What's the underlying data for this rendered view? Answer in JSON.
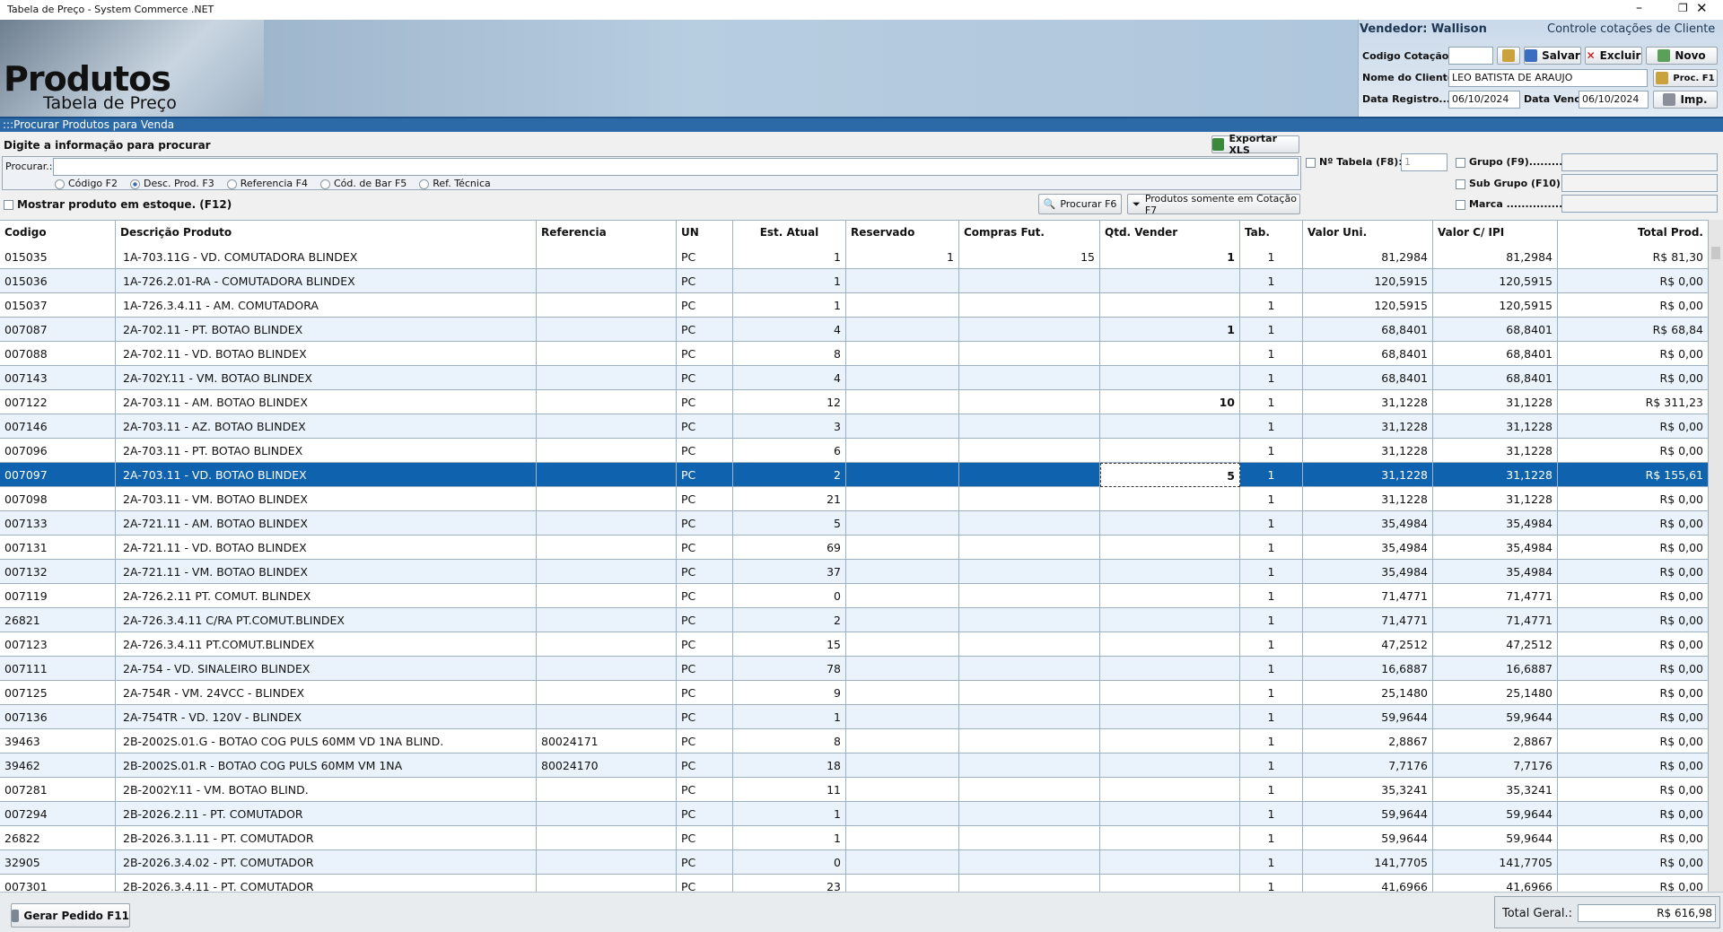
{
  "window": {
    "title": "Tabela de Preço - System Commerce .NET"
  },
  "header": {
    "title": "Produtos",
    "subtitle": "Tabela de Preço",
    "vendedor": "Vendedor: Wallison",
    "panel_title": "Controle cotações de Cliente",
    "codigo_label": "Codigo Cotação.:",
    "salvar": "Salvar",
    "excluir": "Excluir",
    "novo": "Novo",
    "cliente_label": "Nome do Cliente:",
    "cliente": "LEO BATISTA DE ARAUJO",
    "proc": "Proc. F1",
    "registro_label": "Data Registro....:",
    "registro": "06/10/2024",
    "venc_label": "Data Venc.:",
    "venc": "06/10/2024",
    "imp": "Imp."
  },
  "search": {
    "section": ":::Procurar Produtos para Venda",
    "hint": "Digite a informação para procurar",
    "export": "Exportar XLS",
    "label": "Procurar.:",
    "options": [
      "Código F2",
      "Desc. Prod. F3",
      "Referencia F4",
      "Cód. de Bar F5",
      "Ref. Técnica"
    ],
    "stock": "Mostrar produto em estoque. (F12)",
    "search_button": "Procurar F6",
    "quote_button": "Produtos somente em Cotação F7",
    "tabela_label": "Nº Tabela (F8):",
    "tabela": "1",
    "grupo": "Grupo (F9)..........:",
    "subgrupo": "Sub Grupo (F10):",
    "marca": "Marca ................:"
  },
  "table": {
    "columns": [
      "Codigo",
      "Descrição Produto",
      "Referencia",
      "UN",
      "Est. Atual",
      "Reservado",
      "Compras Fut.",
      "Qtd. Vender",
      "Tab.",
      "Valor Uni.",
      "Valor C/ IPI",
      "Total Prod."
    ],
    "rows": [
      [
        "015035",
        "1A-703.11G   - VD. COMUTADORA BLINDEX",
        "",
        "PC",
        "1",
        "1",
        "15",
        "1",
        "1",
        "81,2984",
        "81,2984",
        "R$ 81,30"
      ],
      [
        "015036",
        "1A-726.2.01-RA  -  COMUTADORA BLINDEX",
        "",
        "PC",
        "1",
        "",
        "",
        "",
        "1",
        "120,5915",
        "120,5915",
        "R$ 0,00"
      ],
      [
        "015037",
        "1A-726.3.4.11 - AM. COMUTADORA",
        "",
        "PC",
        "1",
        "",
        "",
        "",
        "1",
        "120,5915",
        "120,5915",
        "R$ 0,00"
      ],
      [
        "007087",
        "2A-702.11 -  PT. BOTAO BLINDEX",
        "",
        "PC",
        "4",
        "",
        "",
        "1",
        "1",
        "68,8401",
        "68,8401",
        "R$ 68,84"
      ],
      [
        "007088",
        "2A-702.11 -  VD. BOTAO BLINDEX",
        "",
        "PC",
        "8",
        "",
        "",
        "",
        "1",
        "68,8401",
        "68,8401",
        "R$ 0,00"
      ],
      [
        "007143",
        "2A-702Y.11 - VM. BOTAO BLINDEX",
        "",
        "PC",
        "4",
        "",
        "",
        "",
        "1",
        "68,8401",
        "68,8401",
        "R$ 0,00"
      ],
      [
        "007122",
        "2A-703.11 -  AM. BOTAO BLINDEX",
        "",
        "PC",
        "12",
        "",
        "",
        "10",
        "1",
        "31,1228",
        "31,1228",
        "R$ 311,23"
      ],
      [
        "007146",
        "2A-703.11 -  AZ. BOTAO BLINDEX",
        "",
        "PC",
        "3",
        "",
        "",
        "",
        "1",
        "31,1228",
        "31,1228",
        "R$ 0,00"
      ],
      [
        "007096",
        "2A-703.11 -  PT. BOTAO BLINDEX",
        "",
        "PC",
        "6",
        "",
        "",
        "",
        "1",
        "31,1228",
        "31,1228",
        "R$ 0,00"
      ],
      [
        "007097",
        "2A-703.11 -  VD. BOTAO BLINDEX",
        "",
        "PC",
        "2",
        "",
        "",
        "5",
        "1",
        "31,1228",
        "31,1228",
        "R$ 155,61"
      ],
      [
        "007098",
        "2A-703.11 -  VM. BOTAO BLINDEX",
        "",
        "PC",
        "21",
        "",
        "",
        "",
        "1",
        "31,1228",
        "31,1228",
        "R$ 0,00"
      ],
      [
        "007133",
        "2A-721.11 - AM. BOTAO BLINDEX",
        "",
        "PC",
        "5",
        "",
        "",
        "",
        "1",
        "35,4984",
        "35,4984",
        "R$ 0,00"
      ],
      [
        "007131",
        "2A-721.11 - VD. BOTAO BLINDEX",
        "",
        "PC",
        "69",
        "",
        "",
        "",
        "1",
        "35,4984",
        "35,4984",
        "R$ 0,00"
      ],
      [
        "007132",
        "2A-721.11 - VM. BOTAO BLINDEX",
        "",
        "PC",
        "37",
        "",
        "",
        "",
        "1",
        "35,4984",
        "35,4984",
        "R$ 0,00"
      ],
      [
        "007119",
        "2A-726.2.11 PT. COMUT. BLINDEX",
        "",
        "PC",
        "0",
        "",
        "",
        "",
        "1",
        "71,4771",
        "71,4771",
        "R$ 0,00"
      ],
      [
        "26821",
        "2A-726.3.4.11 C/RA PT.COMUT.BLINDEX",
        "",
        "PC",
        "2",
        "",
        "",
        "",
        "1",
        "71,4771",
        "71,4771",
        "R$ 0,00"
      ],
      [
        "007123",
        "2A-726.3.4.11 PT.COMUT.BLINDEX",
        "",
        "PC",
        "15",
        "",
        "",
        "",
        "1",
        "47,2512",
        "47,2512",
        "R$ 0,00"
      ],
      [
        "007111",
        "2A-754 - VD. SINALEIRO BLINDEX",
        "",
        "PC",
        "78",
        "",
        "",
        "",
        "1",
        "16,6887",
        "16,6887",
        "R$ 0,00"
      ],
      [
        "007125",
        "2A-754R - VM. 24VCC - BLINDEX",
        "",
        "PC",
        "9",
        "",
        "",
        "",
        "1",
        "25,1480",
        "25,1480",
        "R$ 0,00"
      ],
      [
        "007136",
        "2A-754TR - VD. 120V - BLINDEX",
        "",
        "PC",
        "1",
        "",
        "",
        "",
        "1",
        "59,9644",
        "59,9644",
        "R$ 0,00"
      ],
      [
        "39463",
        "2B-2002S.01.G  -  BOTAO COG PULS 60MM VD 1NA BLIND.",
        "80024171",
        "PC",
        "8",
        "",
        "",
        "",
        "1",
        "2,8867",
        "2,8867",
        "R$ 0,00"
      ],
      [
        "39462",
        "2B-2002S.01.R -  BOTAO COG PULS 60MM VM 1NA",
        "80024170",
        "PC",
        "18",
        "",
        "",
        "",
        "1",
        "7,7176",
        "7,7176",
        "R$ 0,00"
      ],
      [
        "007281",
        "2B-2002Y.11 - VM. BOTAO BLIND.",
        "",
        "PC",
        "11",
        "",
        "",
        "",
        "1",
        "35,3241",
        "35,3241",
        "R$ 0,00"
      ],
      [
        "007294",
        "2B-2026.2.11 - PT. COMUTADOR",
        "",
        "PC",
        "1",
        "",
        "",
        "",
        "1",
        "59,9644",
        "59,9644",
        "R$ 0,00"
      ],
      [
        "26822",
        "2B-2026.3.1.11 - PT. COMUTADOR",
        "",
        "PC",
        "1",
        "",
        "",
        "",
        "1",
        "59,9644",
        "59,9644",
        "R$ 0,00"
      ],
      [
        "32905",
        "2B-2026.3.4.02 - PT. COMUTADOR",
        "",
        "PC",
        "0",
        "",
        "",
        "",
        "1",
        "141,7705",
        "141,7705",
        "R$ 0,00"
      ],
      [
        "007301",
        "2B-2026.3.4.11 - PT. COMUTADOR",
        "",
        "PC",
        "23",
        "",
        "",
        "",
        "1",
        "41,6966",
        "41,6966",
        "R$ 0,00"
      ]
    ],
    "selected_row": 9
  },
  "footer": {
    "order": "Gerar Pedido F11",
    "total_label": "Total Geral.:",
    "total": "R$ 616,98"
  }
}
